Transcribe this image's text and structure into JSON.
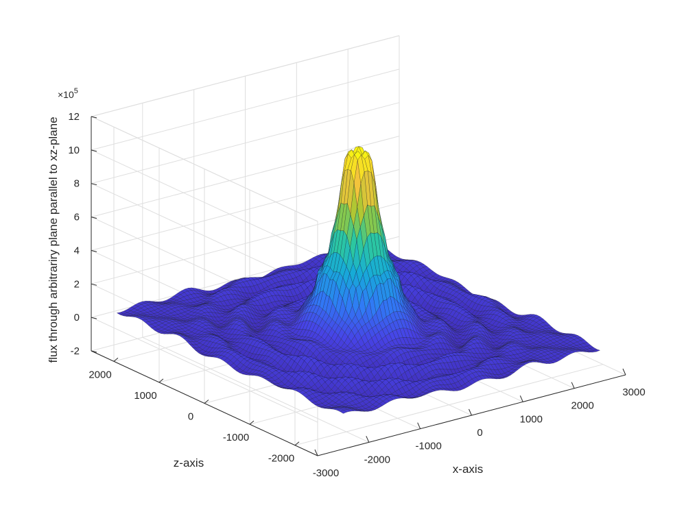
{
  "chart_data": {
    "type": "surface",
    "title": "",
    "xlabel": "x-axis",
    "ylabel": "z-axis",
    "zlabel": "flux through arbitrariry plane parallel to xz-plane",
    "z_exponent_label": "×10",
    "z_exponent_power": "5",
    "xlim": [
      -3000,
      3000
    ],
    "ylim": [
      -2500,
      2500
    ],
    "zlim": [
      -2,
      12
    ],
    "x_ticks": [
      -3000,
      -2000,
      -1000,
      0,
      1000,
      2000,
      3000
    ],
    "x_tick_labels": [
      "-3000",
      "-2000",
      "-1000",
      "0",
      "1000",
      "2000",
      "3000"
    ],
    "y_ticks": [
      -2000,
      -1000,
      0,
      1000,
      2000
    ],
    "y_tick_labels": [
      "-2000",
      "-1000",
      "0",
      "1000",
      "2000"
    ],
    "z_ticks": [
      -2,
      0,
      2,
      4,
      6,
      8,
      10,
      12
    ],
    "z_tick_labels": [
      "-2",
      "0",
      "2",
      "4",
      "6",
      "8",
      "10",
      "12"
    ],
    "surface_extent": {
      "x": [
        -2500,
        2500
      ],
      "y": [
        -2500,
        2500
      ]
    },
    "central_peak": {
      "radius_top": 220,
      "levels": [
        10.4,
        6.2,
        3.6,
        1.6
      ],
      "step_radii": [
        260,
        420,
        620,
        900
      ]
    },
    "ripple_amplitude": 0.35,
    "grid": true,
    "colormap": [
      "#3e26a8",
      "#4743e6",
      "#2f7cf5",
      "#16abd8",
      "#2ec99c",
      "#a6c731",
      "#f5c43c",
      "#f8fa0d"
    ]
  }
}
